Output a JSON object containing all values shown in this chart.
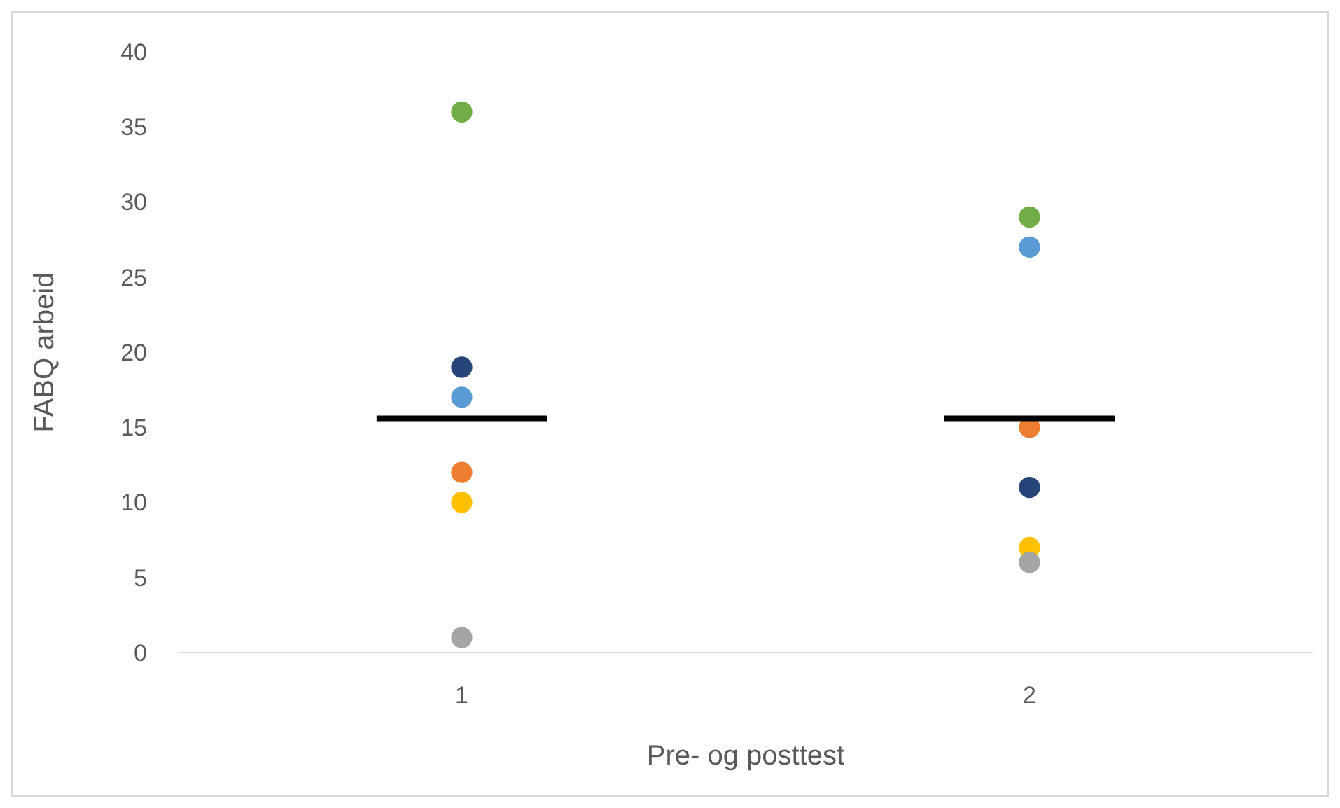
{
  "chart_data": {
    "type": "scatter",
    "xlabel": "Pre- og posttest",
    "ylabel": "FABQ arbeid",
    "xlim": [
      0.5,
      2.5
    ],
    "xticks": [
      1,
      2
    ],
    "ylim": [
      0,
      40
    ],
    "yticks": [
      0,
      5,
      10,
      15,
      20,
      25,
      30,
      35,
      40
    ],
    "grid": false,
    "marker": "circle",
    "series": [
      {
        "color": "#70ad47",
        "x": [
          1,
          2
        ],
        "values": [
          36,
          29
        ]
      },
      {
        "color": "#264478",
        "x": [
          1,
          2
        ],
        "values": [
          19,
          11
        ]
      },
      {
        "color": "#5b9bd5",
        "x": [
          1,
          2
        ],
        "values": [
          17,
          27
        ]
      },
      {
        "color": "#ed7d31",
        "x": [
          1,
          2
        ],
        "values": [
          12,
          15
        ]
      },
      {
        "color": "#ffc000",
        "x": [
          1,
          2
        ],
        "values": [
          10,
          7
        ]
      },
      {
        "color": "#a5a5a5",
        "x": [
          1,
          2
        ],
        "values": [
          1,
          6
        ]
      },
      {
        "type": "line",
        "color": "#000000",
        "x": [
          0.85,
          1.15
        ],
        "values": [
          15.6,
          15.6
        ],
        "marker": "none"
      },
      {
        "type": "line",
        "color": "#000000",
        "x": [
          1.85,
          2.15
        ],
        "values": [
          15.6,
          15.6
        ],
        "marker": "none"
      }
    ]
  }
}
